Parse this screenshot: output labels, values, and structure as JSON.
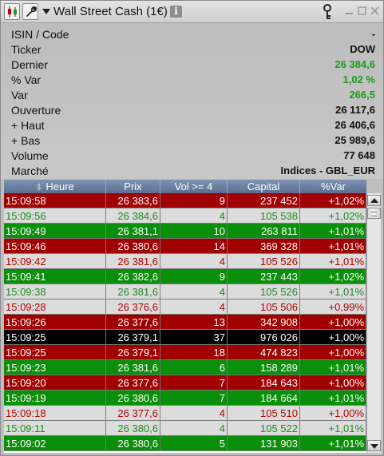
{
  "window": {
    "title": "Wall Street Cash (1€)",
    "info_glyph": "i"
  },
  "info": [
    {
      "label": "ISIN / Code",
      "value": "-",
      "color": "#111111"
    },
    {
      "label": "Ticker",
      "value": "DOW",
      "color": "#111111"
    },
    {
      "label": "Dernier",
      "value": "26 384,6",
      "color": "#1c9a1c"
    },
    {
      "label": "% Var",
      "value": "1,02 %",
      "color": "#1c9a1c"
    },
    {
      "label": "Var",
      "value": "266,5",
      "color": "#1c9a1c"
    },
    {
      "label": "Ouverture",
      "value": "26 117,6",
      "color": "#111111"
    },
    {
      "label": "+ Haut",
      "value": "26 406,6",
      "color": "#111111"
    },
    {
      "label": "+ Bas",
      "value": "25 989,6",
      "color": "#111111"
    },
    {
      "label": "Volume",
      "value": "77 648",
      "color": "#111111"
    },
    {
      "label": "Marché",
      "value": "Indices - GBL_EUR",
      "color": "#111111"
    }
  ],
  "table": {
    "headers": {
      "time": "Heure",
      "price": "Prix",
      "vol": "Vol >= 4",
      "capital": "Capital",
      "var": "%Var",
      "sort_glyph": "⇩"
    },
    "rows": [
      {
        "time": "15:09:58",
        "price": "26 383,6",
        "vol": "9",
        "capital": "237 452",
        "var": "+1,02%",
        "style": "red"
      },
      {
        "time": "15:09:56",
        "price": "26 384,6",
        "vol": "4",
        "capital": "105 538",
        "var": "+1,02%",
        "style": "lightg"
      },
      {
        "time": "15:09:49",
        "price": "26 381,1",
        "vol": "10",
        "capital": "263 811",
        "var": "+1,01%",
        "style": "green"
      },
      {
        "time": "15:09:46",
        "price": "26 380,6",
        "vol": "14",
        "capital": "369 328",
        "var": "+1,01%",
        "style": "red"
      },
      {
        "time": "15:09:42",
        "price": "26 381,6",
        "vol": "4",
        "capital": "105 526",
        "var": "+1,01%",
        "style": "lightr"
      },
      {
        "time": "15:09:41",
        "price": "26 382,6",
        "vol": "9",
        "capital": "237 443",
        "var": "+1,02%",
        "style": "green"
      },
      {
        "time": "15:09:38",
        "price": "26 381,6",
        "vol": "4",
        "capital": "105 526",
        "var": "+1,01%",
        "style": "lightg"
      },
      {
        "time": "15:09:28",
        "price": "26 376,6",
        "vol": "4",
        "capital": "105 506",
        "var": "+0,99%",
        "style": "lightr"
      },
      {
        "time": "15:09:26",
        "price": "26 377,6",
        "vol": "13",
        "capital": "342 908",
        "var": "+1,00%",
        "style": "red"
      },
      {
        "time": "15:09:25",
        "price": "26 379,1",
        "vol": "37",
        "capital": "976 026",
        "var": "+1,00%",
        "style": "black"
      },
      {
        "time": "15:09:25",
        "price": "26 379,1",
        "vol": "18",
        "capital": "474 823",
        "var": "+1,00%",
        "style": "red"
      },
      {
        "time": "15:09:23",
        "price": "26 381,6",
        "vol": "6",
        "capital": "158 289",
        "var": "+1,01%",
        "style": "green"
      },
      {
        "time": "15:09:20",
        "price": "26 377,6",
        "vol": "7",
        "capital": "184 643",
        "var": "+1,00%",
        "style": "red"
      },
      {
        "time": "15:09:19",
        "price": "26 380,6",
        "vol": "7",
        "capital": "184 664",
        "var": "+1,01%",
        "style": "green"
      },
      {
        "time": "15:09:18",
        "price": "26 377,6",
        "vol": "4",
        "capital": "105 510",
        "var": "+1,00%",
        "style": "lightr"
      },
      {
        "time": "15:09:11",
        "price": "26 380,6",
        "vol": "4",
        "capital": "105 522",
        "var": "+1,01%",
        "style": "lightg"
      },
      {
        "time": "15:09:02",
        "price": "26 380,6",
        "vol": "5",
        "capital": "131 903",
        "var": "+1,01%",
        "style": "green"
      }
    ]
  }
}
